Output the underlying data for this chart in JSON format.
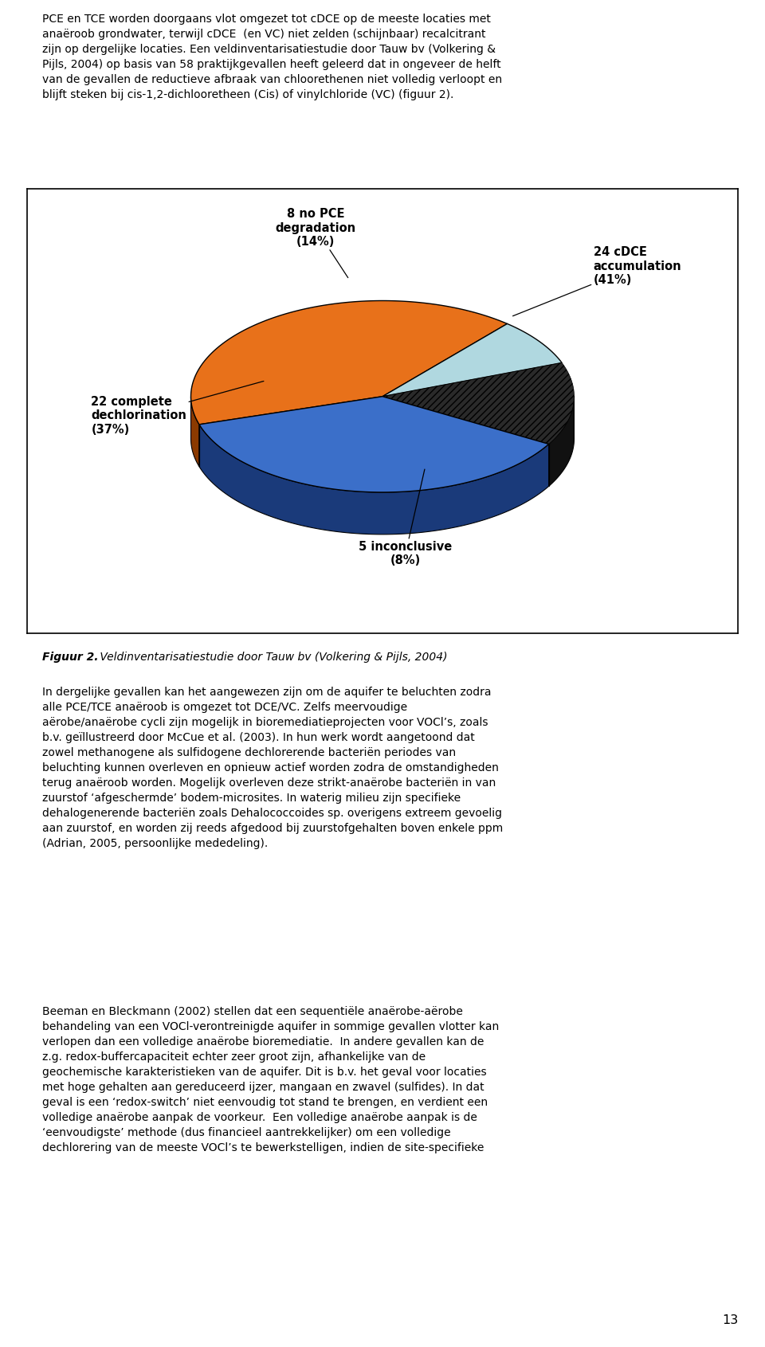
{
  "slices": [
    {
      "label": "22 complete\ndechlorination\n(37%)",
      "value": 37,
      "color": "#3B6FC9",
      "shadow_color": "#1a3a7a",
      "explode": 0.0
    },
    {
      "label": "8 no PCE\ndegradation\n(14%)",
      "value": 14,
      "color": "#2a2a2a",
      "shadow_color": "#111111",
      "explode": 0.0
    },
    {
      "label": "5 inconclusive\n(8%)",
      "value": 8,
      "color": "#B0D8E0",
      "shadow_color": "#7aabbb",
      "explode": 0.0
    },
    {
      "label": "24 cDCE\naccumulation\n(41%)",
      "value": 41,
      "color": "#E8711A",
      "shadow_color": "#8B3A00",
      "explode": 0.0
    }
  ],
  "figure_caption_bold": "Figuur 2.",
  "figure_caption_italic": " Veldinventarisatiestudie door Tauw bv (Volkering & Pijls, 2004)",
  "body_text_top_bold": "PCE en TCE worden doorgaans vlot",
  "body_text_top": "PCE en TCE worden doorgaans vlot omgezet tot cDCE op de meeste locaties met\nanaëroob grondwater, terwijl cDCE  (en VC) niet zelden (schijnbaar) recalcitrant\nzijn op dergelijke locaties. Een veldinventarisatiestudie door Tauw bv (Volkering &\nPijls, 2004) op basis van 58 praktijkgevallen heeft geleerd dat in ongeveer de helft\nvan de gevallen de reductieve afbraak van chloorethenen niet volledig verloopt en\nblijft steken bij cis-1,2-dichlooretheen (Cis) of vinylchloride (VC) (figuur 2).",
  "body_text_bottom_1": "In dergelijke gevallen kan het aangewezen zijn om de aquifer te beluchten zodra\nalle PCE/TCE anaëroob is omgezet tot DCE/VC. Zelfs meervoudige\naërobe/anaërobe cycli zijn mogelijk in bioremediatieprojecten voor VOCl’s, zoals\nb.v. geïllustreerd door McCue et al. (2003). In hun werk wordt aangetoond dat\nzowel methanogene als sulfidogene dechlorerende bacteriën periodes van\nbeluchting kunnen overleven en opnieuw actief worden zodra de omstandigheden\nterug anaëroob worden. Mogelijk overleven deze strikt-anaërobe bacteriën in van\nzuurstof ‘afgeschermde’ bodem-microsites. In waterig milieu zijn specifieke\ndehalogenerende bacteriën zoals Dehalococcoides sp. overigens extreem gevoelig\naan zuurstof, en worden zij reeds afgedood bij zuurstofgehalten boven enkele ppm\n(Adrian, 2005, persoonlijke mededeling).",
  "body_text_bottom_2": "Beeman en Bleckmann (2002) stellen dat een sequentiële anaërobe-aërobe\nbehandeling van een VOCl-verontreinigde aquifer in sommige gevallen vlotter kan\nverlopen dan een volledige anaërobe bioremediatie.  In andere gevallen kan de\nz.g. redox-buffercapaciteit echter zeer groot zijn, afhankelijke van de\ngeochemische karakteristieken van de aquifer. Dit is b.v. het geval voor locaties\nmet hoge gehalten aan gereduceerd ijzer, mangaan en zwavel (sulfides). In dat\ngeval is een ‘redox-switch’ niet eenvoudig tot stand te brengen, en verdient een\nvolledige anaërobe aanpak de voorkeur.  Een volledige anaërobe aanpak is de\n‘eenvoudigste’ methode (dus financieel aantrekkelijker) om een volledige\ndechlorering van de meeste VOCl’s te bewerkstelligen, indien de site-specifieke",
  "page_number": "13",
  "background_color": "#ffffff",
  "label_fontsize": 10.5,
  "body_fontsize": 10.0,
  "hatching": [
    "",
    "////",
    "",
    ""
  ],
  "start_angle": 197,
  "depth3d": 0.22,
  "yscale": 0.5
}
